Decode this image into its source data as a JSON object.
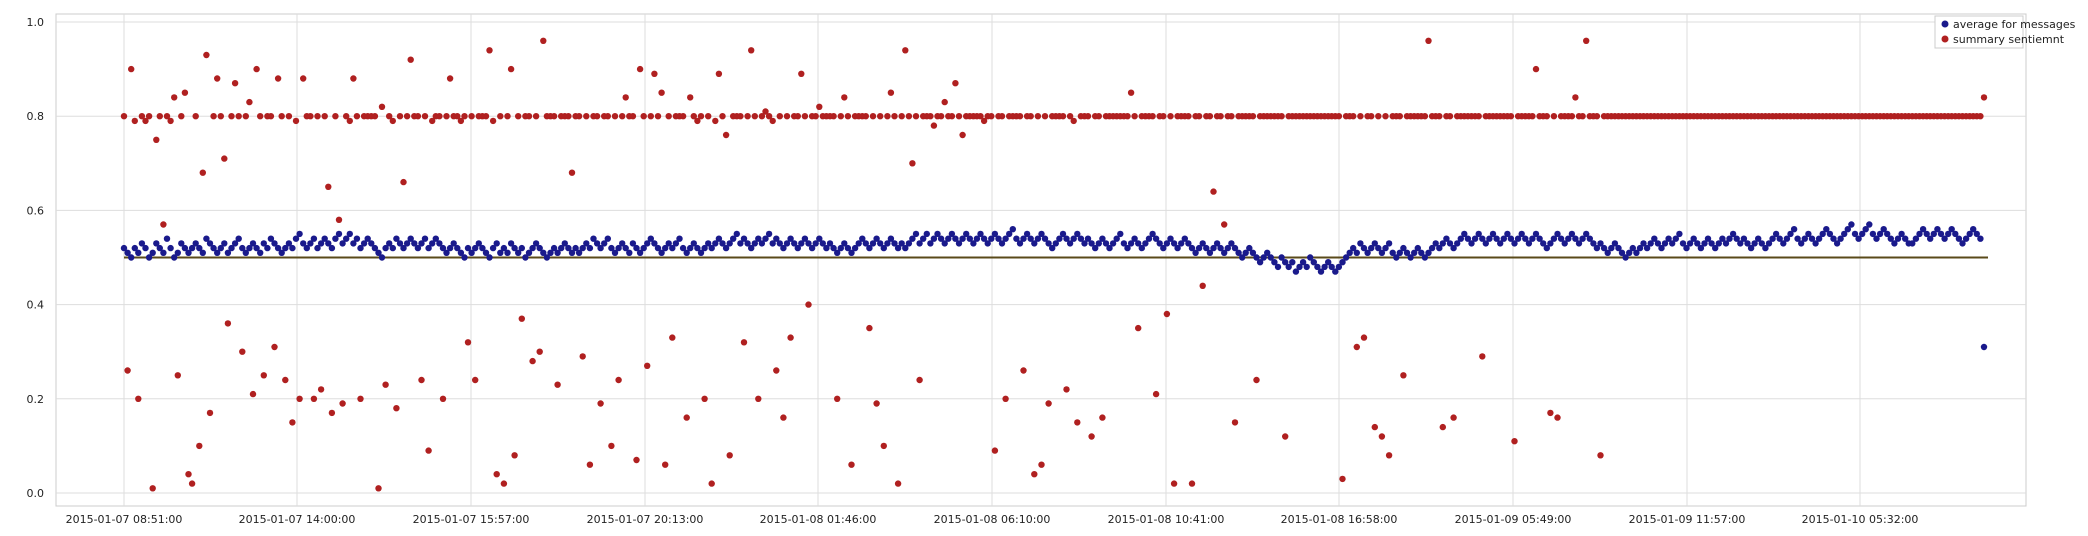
{
  "chart_data": {
    "type": "scatter",
    "grid": true,
    "legend_position": "top-right",
    "ylim": [
      0.0,
      1.0
    ],
    "yticks": [
      "0.0",
      "0.2",
      "0.4",
      "0.6",
      "0.8",
      "1.0"
    ],
    "xticks": [
      "2015-01-07 08:51:00",
      "2015-01-07 14:00:00",
      "2015-01-07 15:57:00",
      "2015-01-07 20:13:00",
      "2015-01-08 01:46:00",
      "2015-01-08 06:10:00",
      "2015-01-08 10:41:00",
      "2015-01-08 16:58:00",
      "2015-01-09 05:49:00",
      "2015-01-09 11:57:00",
      "2015-01-10 05:32:00"
    ],
    "reference_line": {
      "y": 0.5,
      "color": "#5a4a1a"
    },
    "point_count": 520,
    "series": [
      {
        "name": "average for messages",
        "color": "#1a1a8c",
        "values": [
          0.52,
          0.51,
          0.5,
          0.52,
          0.51,
          0.53,
          0.52,
          0.5,
          0.51,
          0.53,
          0.52,
          0.51,
          0.54,
          0.52,
          0.5,
          0.51,
          0.53,
          0.52,
          0.51,
          0.52,
          0.53,
          0.52,
          0.51,
          0.54,
          0.53,
          0.52,
          0.51,
          0.52,
          0.53,
          0.51,
          0.52,
          0.53,
          0.54,
          0.52,
          0.51,
          0.52,
          0.53,
          0.52,
          0.51,
          0.53,
          0.52,
          0.54,
          0.53,
          0.52,
          0.51,
          0.52,
          0.53,
          0.52,
          0.54,
          0.55,
          0.53,
          0.52,
          0.53,
          0.54,
          0.52,
          0.53,
          0.54,
          0.53,
          0.52,
          0.54,
          0.55,
          0.53,
          0.54,
          0.55,
          0.53,
          0.54,
          0.52,
          0.53,
          0.54,
          0.53,
          0.52,
          0.51,
          0.5,
          0.52,
          0.53,
          0.52,
          0.54,
          0.53,
          0.52,
          0.53,
          0.54,
          0.53,
          0.52,
          0.53,
          0.54,
          0.52,
          0.53,
          0.54,
          0.53,
          0.52,
          0.51,
          0.52,
          0.53,
          0.52,
          0.51,
          0.5,
          0.52,
          0.51,
          0.52,
          0.53,
          0.52,
          0.51,
          0.5,
          0.52,
          0.53,
          0.51,
          0.52,
          0.51,
          0.53,
          0.52,
          0.51,
          0.52,
          0.5,
          0.51,
          0.52,
          0.53,
          0.52,
          0.51,
          0.5,
          0.51,
          0.52,
          0.51,
          0.52,
          0.53,
          0.52,
          0.51,
          0.52,
          0.51,
          0.52,
          0.53,
          0.52,
          0.54,
          0.53,
          0.52,
          0.53,
          0.54,
          0.52,
          0.51,
          0.52,
          0.53,
          0.52,
          0.51,
          0.53,
          0.52,
          0.51,
          0.52,
          0.53,
          0.54,
          0.53,
          0.52,
          0.51,
          0.52,
          0.53,
          0.52,
          0.53,
          0.54,
          0.52,
          0.51,
          0.52,
          0.53,
          0.52,
          0.51,
          0.52,
          0.53,
          0.52,
          0.53,
          0.54,
          0.53,
          0.52,
          0.53,
          0.54,
          0.55,
          0.53,
          0.54,
          0.53,
          0.52,
          0.53,
          0.54,
          0.53,
          0.54,
          0.55,
          0.53,
          0.54,
          0.53,
          0.52,
          0.53,
          0.54,
          0.53,
          0.52,
          0.53,
          0.54,
          0.53,
          0.52,
          0.53,
          0.54,
          0.53,
          0.52,
          0.53,
          0.52,
          0.51,
          0.52,
          0.53,
          0.52,
          0.51,
          0.52,
          0.53,
          0.54,
          0.53,
          0.52,
          0.53,
          0.54,
          0.53,
          0.52,
          0.53,
          0.54,
          0.53,
          0.52,
          0.53,
          0.52,
          0.53,
          0.54,
          0.55,
          0.53,
          0.54,
          0.55,
          0.53,
          0.54,
          0.55,
          0.54,
          0.53,
          0.54,
          0.55,
          0.54,
          0.53,
          0.54,
          0.55,
          0.54,
          0.53,
          0.54,
          0.55,
          0.54,
          0.53,
          0.54,
          0.55,
          0.54,
          0.53,
          0.54,
          0.55,
          0.56,
          0.54,
          0.53,
          0.54,
          0.55,
          0.54,
          0.53,
          0.54,
          0.55,
          0.54,
          0.53,
          0.52,
          0.53,
          0.54,
          0.55,
          0.54,
          0.53,
          0.54,
          0.55,
          0.54,
          0.53,
          0.54,
          0.53,
          0.52,
          0.53,
          0.54,
          0.53,
          0.52,
          0.53,
          0.54,
          0.55,
          0.53,
          0.52,
          0.53,
          0.54,
          0.53,
          0.52,
          0.53,
          0.54,
          0.55,
          0.54,
          0.53,
          0.52,
          0.53,
          0.54,
          0.53,
          0.52,
          0.53,
          0.54,
          0.53,
          0.52,
          0.51,
          0.52,
          0.53,
          0.52,
          0.51,
          0.52,
          0.53,
          0.52,
          0.51,
          0.52,
          0.53,
          0.52,
          0.51,
          0.5,
          0.51,
          0.52,
          0.51,
          0.5,
          0.49,
          0.5,
          0.51,
          0.5,
          0.49,
          0.48,
          0.5,
          0.49,
          0.48,
          0.49,
          0.47,
          0.48,
          0.49,
          0.48,
          0.5,
          0.49,
          0.48,
          0.47,
          0.48,
          0.49,
          0.48,
          0.47,
          0.48,
          0.49,
          0.5,
          0.51,
          0.52,
          0.51,
          0.53,
          0.52,
          0.51,
          0.52,
          0.53,
          0.52,
          0.51,
          0.52,
          0.53,
          0.51,
          0.5,
          0.51,
          0.52,
          0.51,
          0.5,
          0.51,
          0.52,
          0.51,
          0.5,
          0.51,
          0.52,
          0.53,
          0.52,
          0.53,
          0.54,
          0.53,
          0.52,
          0.53,
          0.54,
          0.55,
          0.54,
          0.53,
          0.54,
          0.55,
          0.54,
          0.53,
          0.54,
          0.55,
          0.54,
          0.53,
          0.54,
          0.55,
          0.54,
          0.53,
          0.54,
          0.55,
          0.54,
          0.53,
          0.54,
          0.55,
          0.54,
          0.53,
          0.52,
          0.53,
          0.54,
          0.55,
          0.54,
          0.53,
          0.54,
          0.55,
          0.54,
          0.53,
          0.54,
          0.55,
          0.54,
          0.53,
          0.52,
          0.53,
          0.52,
          0.51,
          0.52,
          0.53,
          0.52,
          0.51,
          0.5,
          0.51,
          0.52,
          0.51,
          0.52,
          0.53,
          0.52,
          0.53,
          0.54,
          0.53,
          0.52,
          0.53,
          0.54,
          0.53,
          0.54,
          0.55,
          0.53,
          0.52,
          0.53,
          0.54,
          0.53,
          0.52,
          0.53,
          0.54,
          0.53,
          0.52,
          0.53,
          0.54,
          0.53,
          0.54,
          0.55,
          0.54,
          0.53,
          0.54,
          0.53,
          0.52,
          0.53,
          0.54,
          0.53,
          0.52,
          0.53,
          0.54,
          0.55,
          0.54,
          0.53,
          0.54,
          0.55,
          0.56,
          0.54,
          0.53,
          0.54,
          0.55,
          0.54,
          0.53,
          0.54,
          0.55,
          0.56,
          0.55,
          0.54,
          0.53,
          0.54,
          0.55,
          0.56,
          0.57,
          0.55,
          0.54,
          0.55,
          0.56,
          0.57,
          0.55,
          0.54,
          0.55,
          0.56,
          0.55,
          0.54,
          0.53,
          0.54,
          0.55,
          0.54,
          0.53,
          0.53,
          0.54,
          0.55,
          0.56,
          0.55,
          0.54,
          0.55,
          0.56,
          0.55,
          0.54,
          0.55,
          0.56,
          0.55,
          0.54,
          0.53,
          0.54,
          0.55,
          0.56,
          0.55,
          0.54,
          0.31
        ]
      },
      {
        "name": "summary sentiemnt",
        "color": "#b02020",
        "values": [
          0.8,
          0.26,
          0.9,
          0.79,
          0.2,
          0.8,
          0.79,
          0.8,
          0.01,
          0.75,
          0.8,
          0.57,
          0.8,
          0.79,
          0.84,
          0.25,
          0.8,
          0.85,
          0.04,
          0.02,
          0.8,
          0.1,
          0.68,
          0.93,
          0.17,
          0.8,
          0.88,
          0.8,
          0.71,
          0.36,
          0.8,
          0.87,
          0.8,
          0.3,
          0.8,
          0.83,
          0.21,
          0.9,
          0.8,
          0.25,
          0.8,
          0.8,
          0.31,
          0.88,
          0.8,
          0.24,
          0.8,
          0.15,
          0.79,
          0.2,
          0.88,
          0.8,
          0.8,
          0.2,
          0.8,
          0.22,
          0.8,
          0.65,
          0.17,
          0.8,
          0.58,
          0.19,
          0.8,
          0.79,
          0.88,
          0.8,
          0.2,
          0.8,
          0.8,
          0.8,
          0.8,
          0.01,
          0.82,
          0.23,
          0.8,
          0.79,
          0.18,
          0.8,
          0.66,
          0.8,
          0.92,
          0.8,
          0.8,
          0.24,
          0.8,
          0.09,
          0.79,
          0.8,
          0.8,
          0.2,
          0.8,
          0.88,
          0.8,
          0.8,
          0.79,
          0.8,
          0.32,
          0.8,
          0.24,
          0.8,
          0.8,
          0.8,
          0.94,
          0.79,
          0.04,
          0.8,
          0.02,
          0.8,
          0.9,
          0.08,
          0.8,
          0.37,
          0.8,
          0.8,
          0.28,
          0.8,
          0.3,
          0.96,
          0.8,
          0.8,
          0.8,
          0.23,
          0.8,
          0.8,
          0.8,
          0.68,
          0.8,
          0.8,
          0.29,
          0.8,
          0.06,
          0.8,
          0.8,
          0.19,
          0.8,
          0.8,
          0.1,
          0.8,
          0.24,
          0.8,
          0.84,
          0.8,
          0.8,
          0.07,
          0.9,
          0.8,
          0.27,
          0.8,
          0.89,
          0.8,
          0.85,
          0.06,
          0.8,
          0.33,
          0.8,
          0.8,
          0.8,
          0.16,
          0.84,
          0.8,
          0.79,
          0.8,
          0.2,
          0.8,
          0.02,
          0.79,
          0.89,
          0.8,
          0.76,
          0.08,
          0.8,
          0.8,
          0.8,
          0.32,
          0.8,
          0.94,
          0.8,
          0.2,
          0.8,
          0.81,
          0.8,
          0.79,
          0.26,
          0.8,
          0.16,
          0.8,
          0.33,
          0.8,
          0.8,
          0.89,
          0.8,
          0.4,
          0.8,
          0.8,
          0.82,
          0.8,
          0.8,
          0.8,
          0.8,
          0.2,
          0.8,
          0.84,
          0.8,
          0.06,
          0.8,
          0.8,
          0.8,
          0.8,
          0.35,
          0.8,
          0.19,
          0.8,
          0.1,
          0.8,
          0.85,
          0.8,
          0.02,
          0.8,
          0.94,
          0.8,
          0.7,
          0.8,
          0.24,
          0.8,
          0.8,
          0.8,
          0.78,
          0.8,
          0.8,
          0.83,
          0.8,
          0.8,
          0.87,
          0.8,
          0.76,
          0.8,
          0.8,
          0.8,
          0.8,
          0.8,
          0.79,
          0.8,
          0.8,
          0.09,
          0.8,
          0.8,
          0.2,
          0.8,
          0.8,
          0.8,
          0.8,
          0.26,
          0.8,
          0.8,
          0.04,
          0.8,
          0.06,
          0.8,
          0.19,
          0.8,
          0.8,
          0.8,
          0.8,
          0.22,
          0.8,
          0.79,
          0.15,
          0.8,
          0.8,
          0.8,
          0.12,
          0.8,
          0.8,
          0.16,
          0.8,
          0.8,
          0.8,
          0.8,
          0.8,
          0.8,
          0.8,
          0.85,
          0.8,
          0.35,
          0.8,
          0.8,
          0.8,
          0.8,
          0.21,
          0.8,
          0.8,
          0.38,
          0.8,
          0.02,
          0.8,
          0.8,
          0.8,
          0.8,
          0.02,
          0.8,
          0.8,
          0.44,
          0.8,
          0.8,
          0.64,
          0.8,
          0.8,
          0.57,
          0.8,
          0.8,
          0.15,
          0.8,
          0.8,
          0.8,
          0.8,
          0.8,
          0.24,
          0.8,
          0.8,
          0.8,
          0.8,
          0.8,
          0.8,
          0.8,
          0.12,
          0.8,
          0.8,
          0.8,
          0.8,
          0.8,
          0.8,
          0.8,
          0.8,
          0.8,
          0.8,
          0.8,
          0.8,
          0.8,
          0.8,
          0.8,
          0.03,
          0.8,
          0.8,
          0.8,
          0.31,
          0.8,
          0.33,
          0.8,
          0.8,
          0.14,
          0.8,
          0.12,
          0.8,
          0.08,
          0.8,
          0.8,
          0.8,
          0.25,
          0.8,
          0.8,
          0.8,
          0.8,
          0.8,
          0.8,
          0.96,
          0.8,
          0.8,
          0.8,
          0.14,
          0.8,
          0.8,
          0.16,
          0.8,
          0.8,
          0.8,
          0.8,
          0.8,
          0.8,
          0.8,
          0.29,
          0.8,
          0.8,
          0.8,
          0.8,
          0.8,
          0.8,
          0.8,
          0.8,
          0.11,
          0.8,
          0.8,
          0.8,
          0.8,
          0.8,
          0.9,
          0.8,
          0.8,
          0.8,
          0.17,
          0.8,
          0.16,
          0.8,
          0.8,
          0.8,
          0.8,
          0.84,
          0.8,
          0.8,
          0.96,
          0.8,
          0.8,
          0.8,
          0.08,
          0.8,
          0.8,
          0.8,
          0.8,
          0.8,
          0.8,
          0.8,
          0.8,
          0.8,
          0.8,
          0.8,
          0.8,
          0.8,
          0.8,
          0.8,
          0.8,
          0.8,
          0.8,
          0.8,
          0.8,
          0.8,
          0.8,
          0.8,
          0.8,
          0.8,
          0.8,
          0.8,
          0.8,
          0.8,
          0.8,
          0.8,
          0.8,
          0.8,
          0.8,
          0.8,
          0.8,
          0.8,
          0.8,
          0.8,
          0.8,
          0.8,
          0.8,
          0.8,
          0.8,
          0.8,
          0.8,
          0.8,
          0.8,
          0.8,
          0.8,
          0.8,
          0.8,
          0.8,
          0.8,
          0.8,
          0.8,
          0.8,
          0.8,
          0.8,
          0.8,
          0.8,
          0.8,
          0.8,
          0.8,
          0.8,
          0.8,
          0.8,
          0.8,
          0.8,
          0.8,
          0.8,
          0.8,
          0.8,
          0.8,
          0.8,
          0.8,
          0.8,
          0.8,
          0.8,
          0.8,
          0.8,
          0.8,
          0.8,
          0.8,
          0.8,
          0.8,
          0.8,
          0.8,
          0.8,
          0.8,
          0.8,
          0.8,
          0.8,
          0.8,
          0.8,
          0.8,
          0.8,
          0.8,
          0.8,
          0.8,
          0.8,
          0.8,
          0.8,
          0.8,
          0.8,
          0.8,
          0.84
        ]
      }
    ]
  }
}
